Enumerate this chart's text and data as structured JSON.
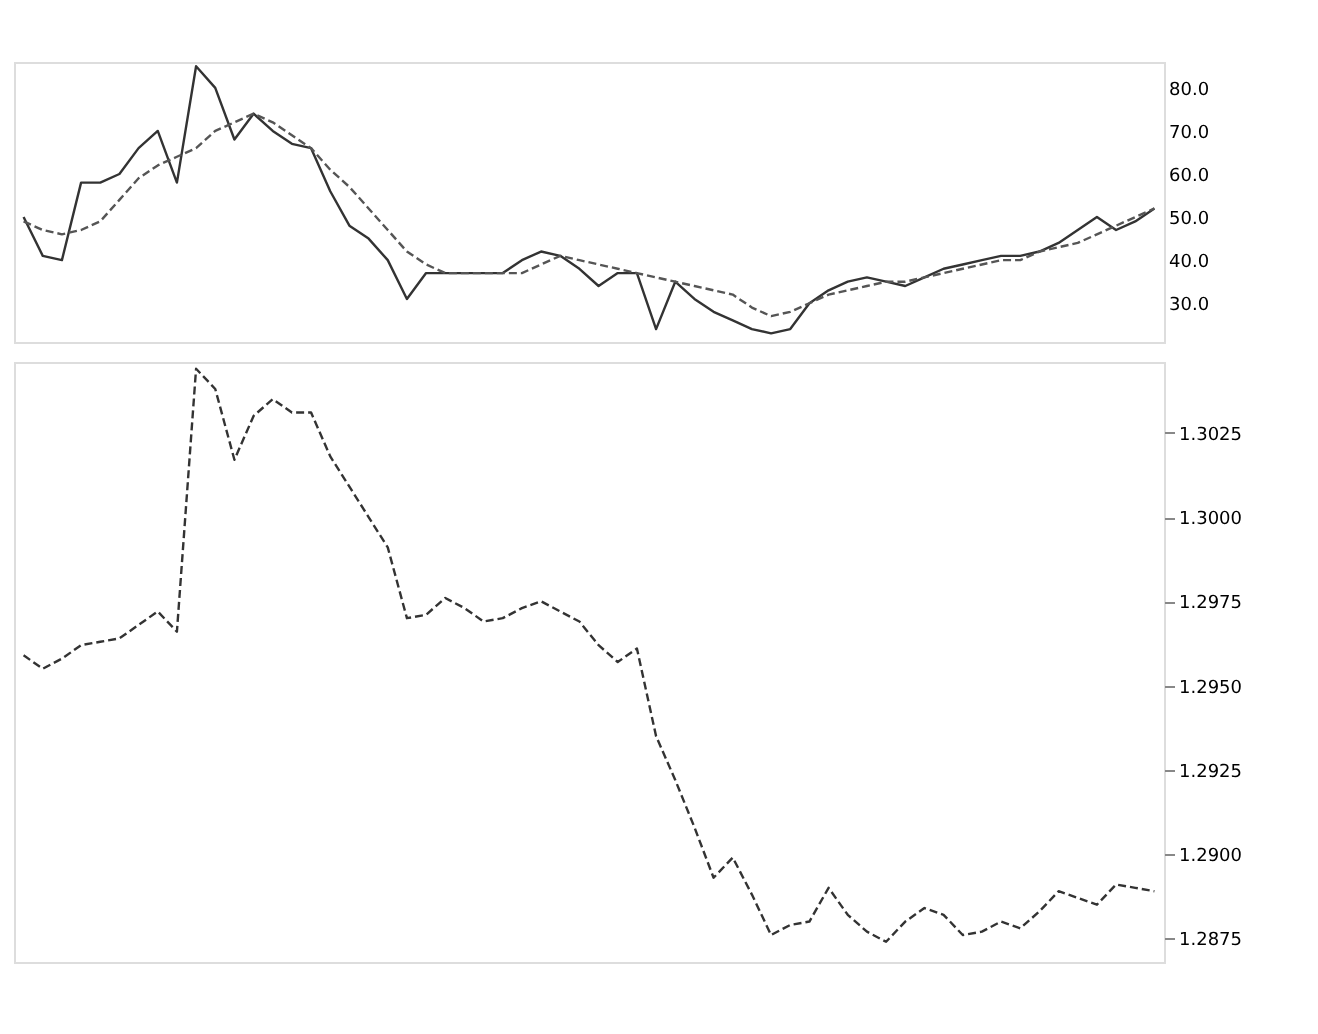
{
  "chart_data": [
    {
      "type": "line",
      "categories": [
        null,
        null,
        null,
        null,
        null,
        null,
        null,
        null,
        null,
        null,
        null,
        null,
        null,
        null,
        null,
        null,
        null,
        null,
        null,
        null,
        null,
        null,
        null,
        null,
        null,
        null,
        null,
        null,
        null,
        null,
        null,
        null,
        null,
        null,
        null,
        null,
        null,
        null,
        null,
        null,
        null,
        null,
        null,
        null,
        null,
        null,
        null,
        null,
        null,
        null,
        null,
        null,
        null,
        null,
        null,
        null,
        null,
        null,
        null,
        null
      ],
      "series": [
        {
          "color": "#333333",
          "line_style": "solid",
          "values": [
            50,
            41,
            40,
            58,
            58,
            60,
            66,
            70,
            58,
            85,
            80,
            68,
            74,
            70,
            67,
            66,
            56,
            48,
            45,
            40,
            31,
            37,
            37,
            37,
            37,
            37,
            40,
            42,
            41,
            38,
            34,
            37,
            37,
            24,
            35,
            31,
            28,
            26,
            24,
            23,
            24,
            30,
            33,
            35,
            36,
            35,
            34,
            36,
            38,
            39,
            40,
            41,
            41,
            42,
            44,
            47,
            50,
            47,
            49,
            52
          ]
        },
        {
          "color": "#555555",
          "line_style": "dashed",
          "values": [
            49,
            47,
            46,
            47,
            49,
            54,
            59,
            62,
            64,
            66,
            70,
            72,
            74,
            72,
            69,
            66,
            61,
            57,
            52,
            47,
            42,
            39,
            37,
            37,
            37,
            37,
            37,
            39,
            41,
            40,
            39,
            38,
            37,
            36,
            35,
            34,
            33,
            32,
            29,
            27,
            28,
            30,
            32,
            33,
            34,
            35,
            35,
            36,
            37,
            38,
            39,
            40,
            40,
            42,
            43,
            44,
            46,
            48,
            50,
            52
          ]
        }
      ],
      "ylim": [
        21,
        86
      ],
      "yticks": [
        {
          "value": 80,
          "label": "80.0"
        },
        {
          "value": 70,
          "label": "70.0"
        },
        {
          "value": 60,
          "label": "60.0"
        },
        {
          "value": 50,
          "label": "50.0"
        },
        {
          "value": 40,
          "label": "40.0"
        },
        {
          "value": 30,
          "label": "30.0"
        }
      ],
      "tick_labels": "y",
      "grid": false
    },
    {
      "type": "line",
      "categories": [
        null,
        null,
        null,
        null,
        null,
        null,
        null,
        null,
        null,
        null,
        null,
        null,
        null,
        null,
        null,
        null,
        null,
        null,
        null,
        null,
        null,
        null,
        null,
        null,
        null,
        null,
        null,
        null,
        null,
        null,
        null,
        null,
        null,
        null,
        null,
        null,
        null,
        null,
        null,
        null,
        null,
        null,
        null,
        null,
        null,
        null,
        null,
        null,
        null,
        null,
        null,
        null,
        null,
        null,
        null,
        null,
        null,
        null,
        null,
        null
      ],
      "series": [
        {
          "color": "#333333",
          "line_style": "dashed",
          "values": [
            1.2959,
            1.2955,
            1.2958,
            1.2962,
            1.2963,
            1.2964,
            1.2968,
            1.2972,
            1.2966,
            1.3044,
            1.3038,
            1.3017,
            1.303,
            1.3035,
            1.3031,
            1.3031,
            1.3018,
            1.3009,
            1.3,
            1.2991,
            1.297,
            1.2971,
            1.2976,
            1.2973,
            1.2969,
            1.297,
            1.2973,
            1.2975,
            1.2972,
            1.2969,
            1.2962,
            1.2957,
            1.2961,
            1.2935,
            1.2922,
            1.2908,
            1.2893,
            1.2899,
            1.2888,
            1.2876,
            1.2879,
            1.288,
            1.289,
            1.2882,
            1.2877,
            1.2874,
            1.288,
            1.2884,
            1.2882,
            1.2876,
            1.2877,
            1.288,
            1.2878,
            1.2883,
            1.2889,
            1.2887,
            1.2885,
            1.2891,
            1.289,
            1.2889
          ]
        }
      ],
      "ylim": [
        1.2868,
        1.3046
      ],
      "yticks": [
        1.3025,
        {
          "value": 1.3,
          "label": "1.3000"
        },
        1.2975,
        {
          "value": 1.295,
          "label": "1.2950"
        },
        1.2925,
        {
          "value": 1.29,
          "label": "1.2900"
        },
        1.2875
      ],
      "tick_labels": "y",
      "grid": false
    }
  ]
}
